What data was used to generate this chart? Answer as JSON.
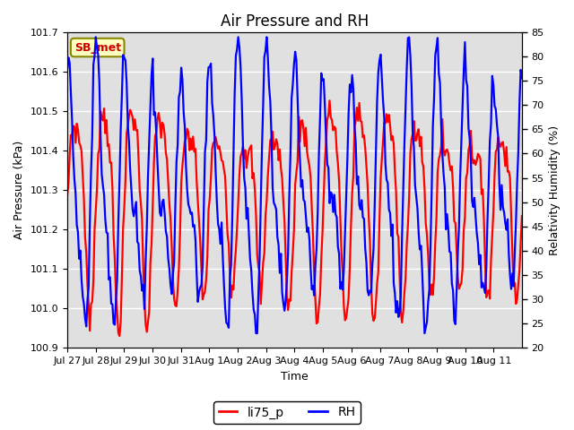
{
  "title": "Air Pressure and RH",
  "xlabel": "Time",
  "ylabel_left": "Air Pressure (kPa)",
  "ylabel_right": "Relativity Humidity (%)",
  "label_box": "SB_met",
  "ylim_left": [
    100.9,
    101.7
  ],
  "ylim_right": [
    20,
    85
  ],
  "yticks_left": [
    100.9,
    101.0,
    101.1,
    101.2,
    101.3,
    101.4,
    101.5,
    101.6,
    101.7
  ],
  "yticks_right": [
    20,
    25,
    30,
    35,
    40,
    45,
    50,
    55,
    60,
    65,
    70,
    75,
    80,
    85
  ],
  "xtick_labels": [
    "Jul 27",
    "Jul 28",
    "Jul 29",
    "Jul 30",
    "Jul 31",
    "Aug 1",
    "Aug 2",
    "Aug 3",
    "Aug 4",
    "Aug 5",
    "Aug 6",
    "Aug 7",
    "Aug 8",
    "Aug 9",
    "Aug 10",
    "Aug 11"
  ],
  "line_color_pressure": "red",
  "line_color_rh": "blue",
  "line_width": 1.6,
  "legend_label_pressure": "li75_p",
  "legend_label_rh": "RH",
  "bg_color": "#e0e0e0",
  "box_facecolor": "#ffffc0",
  "box_edgecolor": "#888800",
  "box_textcolor": "#cc0000",
  "title_fontsize": 12,
  "axis_label_fontsize": 9,
  "tick_fontsize": 8
}
